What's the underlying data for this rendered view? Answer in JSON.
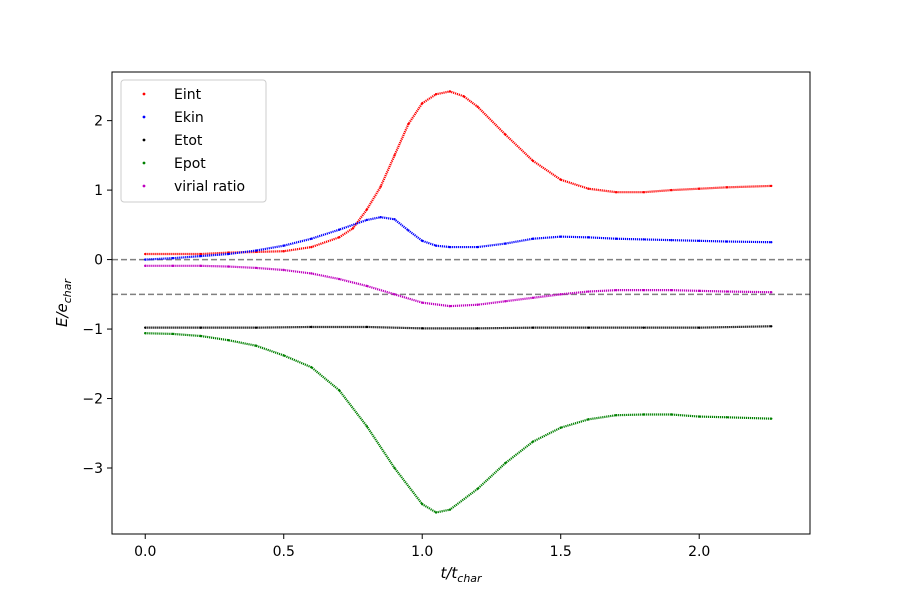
{
  "chart_data": {
    "type": "scatter",
    "xlabel": "t/t",
    "xlabel_sub": "char",
    "ylabel": "E/e",
    "ylabel_sub": "char",
    "xlim": [
      -0.12,
      2.4
    ],
    "ylim": [
      -3.95,
      2.7
    ],
    "xticks": [
      0.0,
      0.5,
      1.0,
      1.5,
      2.0
    ],
    "xtick_labels": [
      "0.0",
      "0.5",
      "1.0",
      "1.5",
      "2.0"
    ],
    "yticks": [
      -3,
      -2,
      -1,
      0,
      1,
      2
    ],
    "ytick_labels": [
      "−3",
      "−2",
      "−1",
      "0",
      "1",
      "2"
    ],
    "reference_lines": [
      0.0,
      -0.5
    ],
    "reference_line_color": "#808080",
    "legend_position": "upper-left",
    "series": [
      {
        "name": "Eint",
        "color": "#ff0000",
        "x": [
          0.0,
          0.2,
          0.3,
          0.4,
          0.5,
          0.6,
          0.7,
          0.75,
          0.8,
          0.85,
          0.9,
          0.95,
          1.0,
          1.05,
          1.1,
          1.15,
          1.2,
          1.3,
          1.4,
          1.5,
          1.6,
          1.7,
          1.8,
          1.9,
          2.0,
          2.1,
          2.26
        ],
        "y": [
          0.08,
          0.08,
          0.1,
          0.11,
          0.12,
          0.18,
          0.32,
          0.45,
          0.72,
          1.05,
          1.5,
          1.95,
          2.25,
          2.38,
          2.42,
          2.35,
          2.2,
          1.8,
          1.42,
          1.15,
          1.02,
          0.97,
          0.97,
          1.0,
          1.02,
          1.04,
          1.06
        ]
      },
      {
        "name": "Ekin",
        "color": "#0000ff",
        "x": [
          0.0,
          0.1,
          0.2,
          0.3,
          0.4,
          0.5,
          0.6,
          0.7,
          0.8,
          0.85,
          0.9,
          0.95,
          1.0,
          1.05,
          1.1,
          1.2,
          1.3,
          1.4,
          1.5,
          1.6,
          1.7,
          1.8,
          1.9,
          2.0,
          2.1,
          2.26
        ],
        "y": [
          0.0,
          0.02,
          0.05,
          0.08,
          0.13,
          0.2,
          0.3,
          0.43,
          0.57,
          0.61,
          0.58,
          0.42,
          0.27,
          0.2,
          0.18,
          0.18,
          0.23,
          0.3,
          0.33,
          0.32,
          0.3,
          0.29,
          0.28,
          0.27,
          0.26,
          0.25
        ]
      },
      {
        "name": "Etot",
        "color": "#000000",
        "x": [
          0.0,
          0.2,
          0.4,
          0.6,
          0.8,
          1.0,
          1.2,
          1.4,
          1.6,
          1.8,
          2.0,
          2.26
        ],
        "y": [
          -0.98,
          -0.98,
          -0.98,
          -0.97,
          -0.97,
          -0.99,
          -0.99,
          -0.98,
          -0.98,
          -0.98,
          -0.98,
          -0.96
        ]
      },
      {
        "name": "Epot",
        "color": "#008000",
        "x": [
          0.0,
          0.1,
          0.2,
          0.3,
          0.4,
          0.5,
          0.6,
          0.7,
          0.8,
          0.9,
          1.0,
          1.05,
          1.1,
          1.2,
          1.3,
          1.4,
          1.5,
          1.6,
          1.7,
          1.8,
          1.9,
          2.0,
          2.1,
          2.26
        ],
        "y": [
          -1.06,
          -1.07,
          -1.1,
          -1.16,
          -1.24,
          -1.38,
          -1.55,
          -1.88,
          -2.4,
          -3.0,
          -3.52,
          -3.64,
          -3.6,
          -3.3,
          -2.93,
          -2.62,
          -2.42,
          -2.3,
          -2.24,
          -2.23,
          -2.23,
          -2.26,
          -2.27,
          -2.29
        ]
      },
      {
        "name": "virial ratio",
        "color": "#bf00bf",
        "x": [
          0.0,
          0.1,
          0.2,
          0.3,
          0.4,
          0.5,
          0.6,
          0.7,
          0.8,
          0.9,
          1.0,
          1.1,
          1.2,
          1.3,
          1.4,
          1.5,
          1.6,
          1.7,
          1.8,
          1.9,
          2.0,
          2.1,
          2.26
        ],
        "y": [
          -0.09,
          -0.09,
          -0.09,
          -0.1,
          -0.12,
          -0.15,
          -0.2,
          -0.28,
          -0.38,
          -0.5,
          -0.62,
          -0.67,
          -0.65,
          -0.6,
          -0.55,
          -0.5,
          -0.46,
          -0.44,
          -0.44,
          -0.44,
          -0.45,
          -0.46,
          -0.47
        ]
      }
    ]
  }
}
